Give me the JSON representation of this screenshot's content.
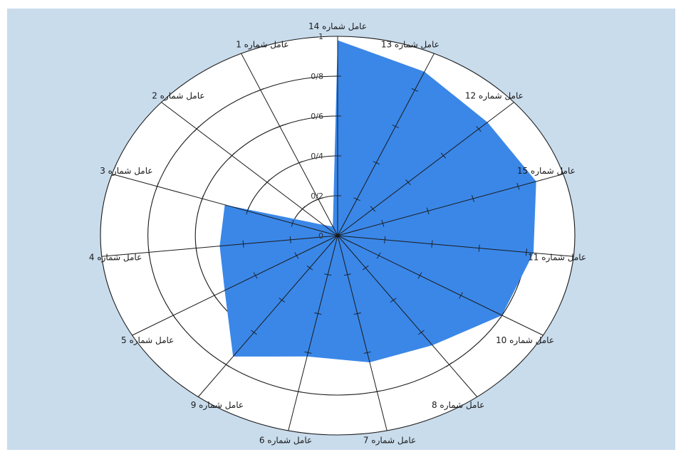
{
  "chart_data": {
    "type": "radar",
    "categories": [
      "عامل شماره 14",
      "عامل شماره 13",
      "عامل شماره 12",
      "عامل شماره 15",
      "عامل شماره 11",
      "عامل شماره 10",
      "عامل شماره 8",
      "عامل شماره 7",
      "عامل شماره 6",
      "عامل شماره 9",
      "عامل شماره 5",
      "عامل شماره 4",
      "عامل شماره 3",
      "عامل شماره 2",
      "عامل شماره 1"
    ],
    "values": [
      0.98,
      0.9,
      0.85,
      0.88,
      0.83,
      0.8,
      0.68,
      0.65,
      0.62,
      0.75,
      0.55,
      0.5,
      0.5,
      0.08,
      0.05
    ],
    "radial_ticks": [
      "0",
      "0/2",
      "0/4",
      "0/6",
      "0/8",
      "1"
    ],
    "rlim": [
      0,
      1
    ],
    "grid": true,
    "colors": {
      "plot_background": "#c9dcec",
      "fill": "#3a87e8",
      "ring_fill": "#ffffff",
      "line": "#1a1a1a"
    }
  }
}
